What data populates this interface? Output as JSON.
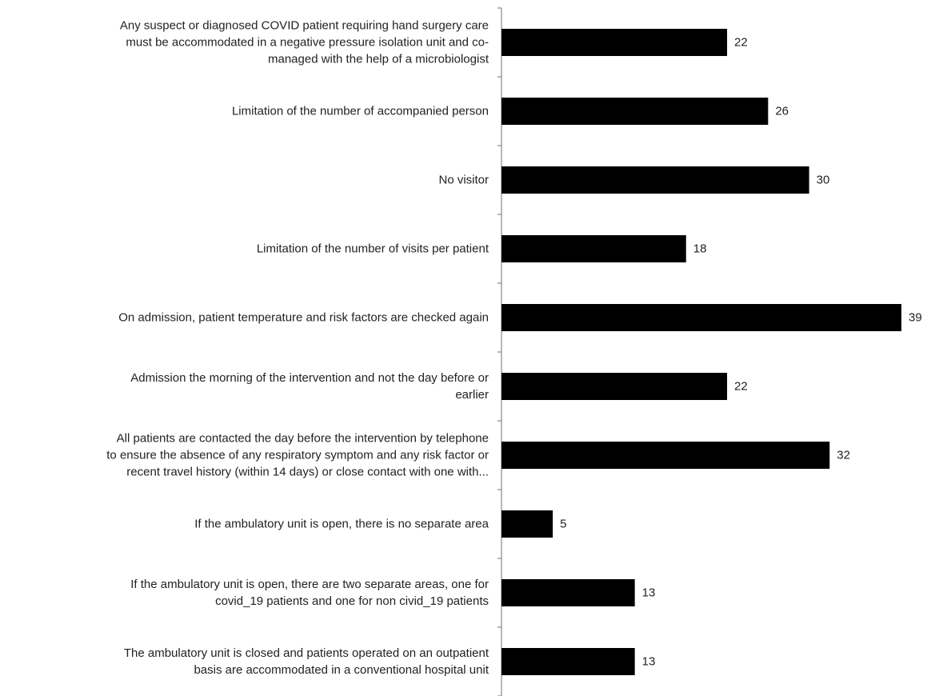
{
  "chart_data": {
    "type": "bar",
    "orientation": "horizontal",
    "categories": [
      [
        "Any suspect or diagnosed COVID patient requiring hand surgery care",
        "must be accommodated in a negative pressure isolation unit and co-",
        "managed with the help of a microbiologist"
      ],
      [
        "Limitation of the number of accompanied person"
      ],
      [
        "No visitor"
      ],
      [
        "Limitation of the number of visits per patient"
      ],
      [
        "On admission, patient temperature and risk factors are checked again"
      ],
      [
        "Admission the morning of the intervention and not the day before or",
        "earlier"
      ],
      [
        "All patients are contacted the day before the intervention by telephone",
        "to ensure the absence of any respiratory symptom and any risk factor or",
        "recent travel history (within 14 days) or close contact with one with..."
      ],
      [
        "If the ambulatory unit is open, there is no separate area"
      ],
      [
        "If the ambulatory unit is open, there are two separate areas, one for",
        "covid_19 patients and one for non civid_19 patients"
      ],
      [
        "The ambulatory unit is closed and patients operated on an outpatient",
        "basis are accommodated in a conventional hospital unit"
      ]
    ],
    "values": [
      22,
      26,
      30,
      18,
      39,
      22,
      32,
      5,
      13,
      13
    ],
    "data_labels": [
      "22",
      "26",
      "30",
      "18",
      "39",
      "22",
      "32",
      "5",
      "13",
      "13"
    ],
    "xlim": [
      0,
      39
    ],
    "grid": false,
    "legend": "none",
    "bar_color": "#000000",
    "axis_color": "#888888"
  }
}
